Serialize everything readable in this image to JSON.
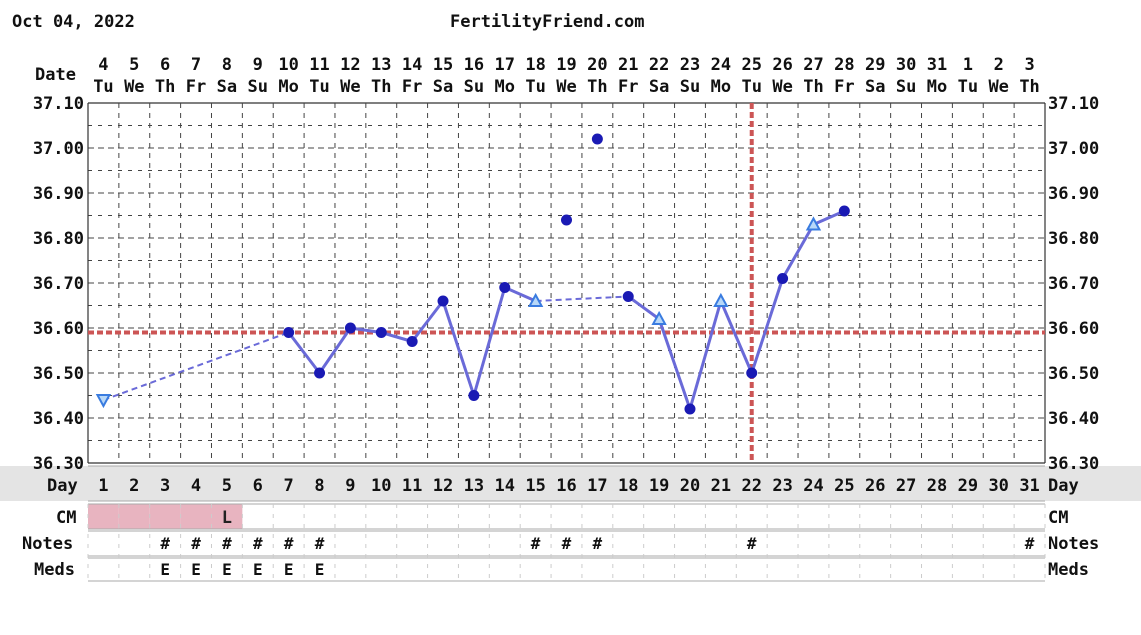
{
  "header": {
    "date": "Oct 04, 2022",
    "site": "FertilityFriend.com"
  },
  "chart_data": {
    "type": "line",
    "title": "",
    "ylim": [
      36.3,
      37.1
    ],
    "y_ticks": [
      "36.30",
      "36.40",
      "36.50",
      "36.60",
      "36.70",
      "36.80",
      "36.90",
      "37.00",
      "37.10"
    ],
    "row_labels": {
      "date": "Date",
      "day": "Day",
      "cm": "CM",
      "notes": "Notes",
      "meds": "Meds"
    },
    "dates": [
      "4",
      "5",
      "6",
      "7",
      "8",
      "9",
      "10",
      "11",
      "12",
      "13",
      "14",
      "15",
      "16",
      "17",
      "18",
      "19",
      "20",
      "21",
      "22",
      "23",
      "24",
      "25",
      "26",
      "27",
      "28",
      "29",
      "30",
      "31",
      "1",
      "2",
      "3"
    ],
    "weekdays": [
      "Tu",
      "We",
      "Th",
      "Fr",
      "Sa",
      "Su",
      "Mo",
      "Tu",
      "We",
      "Th",
      "Fr",
      "Sa",
      "Su",
      "Mo",
      "Tu",
      "We",
      "Th",
      "Fr",
      "Sa",
      "Su",
      "Mo",
      "Tu",
      "We",
      "Th",
      "Fr",
      "Sa",
      "Su",
      "Mo",
      "Tu",
      "We",
      "Th"
    ],
    "cycle_days": [
      "1",
      "2",
      "3",
      "4",
      "5",
      "6",
      "7",
      "8",
      "9",
      "10",
      "11",
      "12",
      "13",
      "14",
      "15",
      "16",
      "17",
      "18",
      "19",
      "20",
      "21",
      "22",
      "23",
      "24",
      "25",
      "26",
      "27",
      "28",
      "29",
      "30",
      "31"
    ],
    "coverline": 36.59,
    "ovulation_day": 22,
    "temps": [
      {
        "day": 1,
        "temp": 36.44,
        "marker": "tri-down"
      },
      {
        "day": 7,
        "temp": 36.59,
        "marker": "dot"
      },
      {
        "day": 8,
        "temp": 36.5,
        "marker": "dot"
      },
      {
        "day": 9,
        "temp": 36.6,
        "marker": "dot"
      },
      {
        "day": 10,
        "temp": 36.59,
        "marker": "dot"
      },
      {
        "day": 11,
        "temp": 36.57,
        "marker": "dot"
      },
      {
        "day": 12,
        "temp": 36.66,
        "marker": "dot"
      },
      {
        "day": 13,
        "temp": 36.45,
        "marker": "dot"
      },
      {
        "day": 14,
        "temp": 36.69,
        "marker": "dot"
      },
      {
        "day": 15,
        "temp": 36.66,
        "marker": "tri-up"
      },
      {
        "day": 18,
        "temp": 36.67,
        "marker": "dot"
      },
      {
        "day": 19,
        "temp": 36.62,
        "marker": "tri-up"
      },
      {
        "day": 20,
        "temp": 36.42,
        "marker": "dot"
      },
      {
        "day": 21,
        "temp": 36.66,
        "marker": "tri-up"
      },
      {
        "day": 22,
        "temp": 36.5,
        "marker": "dot"
      },
      {
        "day": 23,
        "temp": 36.71,
        "marker": "dot"
      },
      {
        "day": 24,
        "temp": 36.83,
        "marker": "tri-up"
      },
      {
        "day": 25,
        "temp": 36.86,
        "marker": "dot"
      }
    ],
    "connections": [
      {
        "from": 1,
        "to": 7,
        "style": "dashed"
      },
      {
        "from": 7,
        "to": 8,
        "style": "solid"
      },
      {
        "from": 8,
        "to": 9,
        "style": "solid"
      },
      {
        "from": 9,
        "to": 10,
        "style": "solid"
      },
      {
        "from": 10,
        "to": 11,
        "style": "solid"
      },
      {
        "from": 11,
        "to": 12,
        "style": "solid"
      },
      {
        "from": 12,
        "to": 13,
        "style": "solid"
      },
      {
        "from": 13,
        "to": 14,
        "style": "solid"
      },
      {
        "from": 14,
        "to": 15,
        "style": "solid"
      },
      {
        "from": 15,
        "to": 18,
        "style": "dashed"
      },
      {
        "from": 18,
        "to": 19,
        "style": "solid"
      },
      {
        "from": 19,
        "to": 20,
        "style": "solid"
      },
      {
        "from": 20,
        "to": 21,
        "style": "solid"
      },
      {
        "from": 21,
        "to": 22,
        "style": "solid"
      },
      {
        "from": 22,
        "to": 23,
        "style": "solid"
      },
      {
        "from": 23,
        "to": 24,
        "style": "solid"
      },
      {
        "from": 24,
        "to": 25,
        "style": "solid"
      }
    ],
    "discarded": [
      {
        "day": 16,
        "temp": 36.84
      },
      {
        "day": 17,
        "temp": 37.02
      }
    ],
    "cm_shaded_days": [
      1,
      2,
      3,
      4,
      5
    ],
    "cm_labels": [
      {
        "day": 5,
        "text": "L"
      }
    ],
    "notes_days": [
      3,
      4,
      5,
      6,
      7,
      8,
      15,
      16,
      17,
      22,
      31
    ],
    "notes_mark": "#",
    "meds_days": [
      3,
      4,
      5,
      6,
      7,
      8
    ],
    "meds_mark": "E",
    "colors": {
      "line": "#6a6ad8",
      "dot": "#1a1ab4",
      "triangle": "#3a7ce0",
      "coverline": "#cc5555",
      "ovulation": "#cc5555",
      "grid": "#444444",
      "cm_fill": "#e8b4c0",
      "day_row_bg": "#e4e4e4"
    }
  }
}
